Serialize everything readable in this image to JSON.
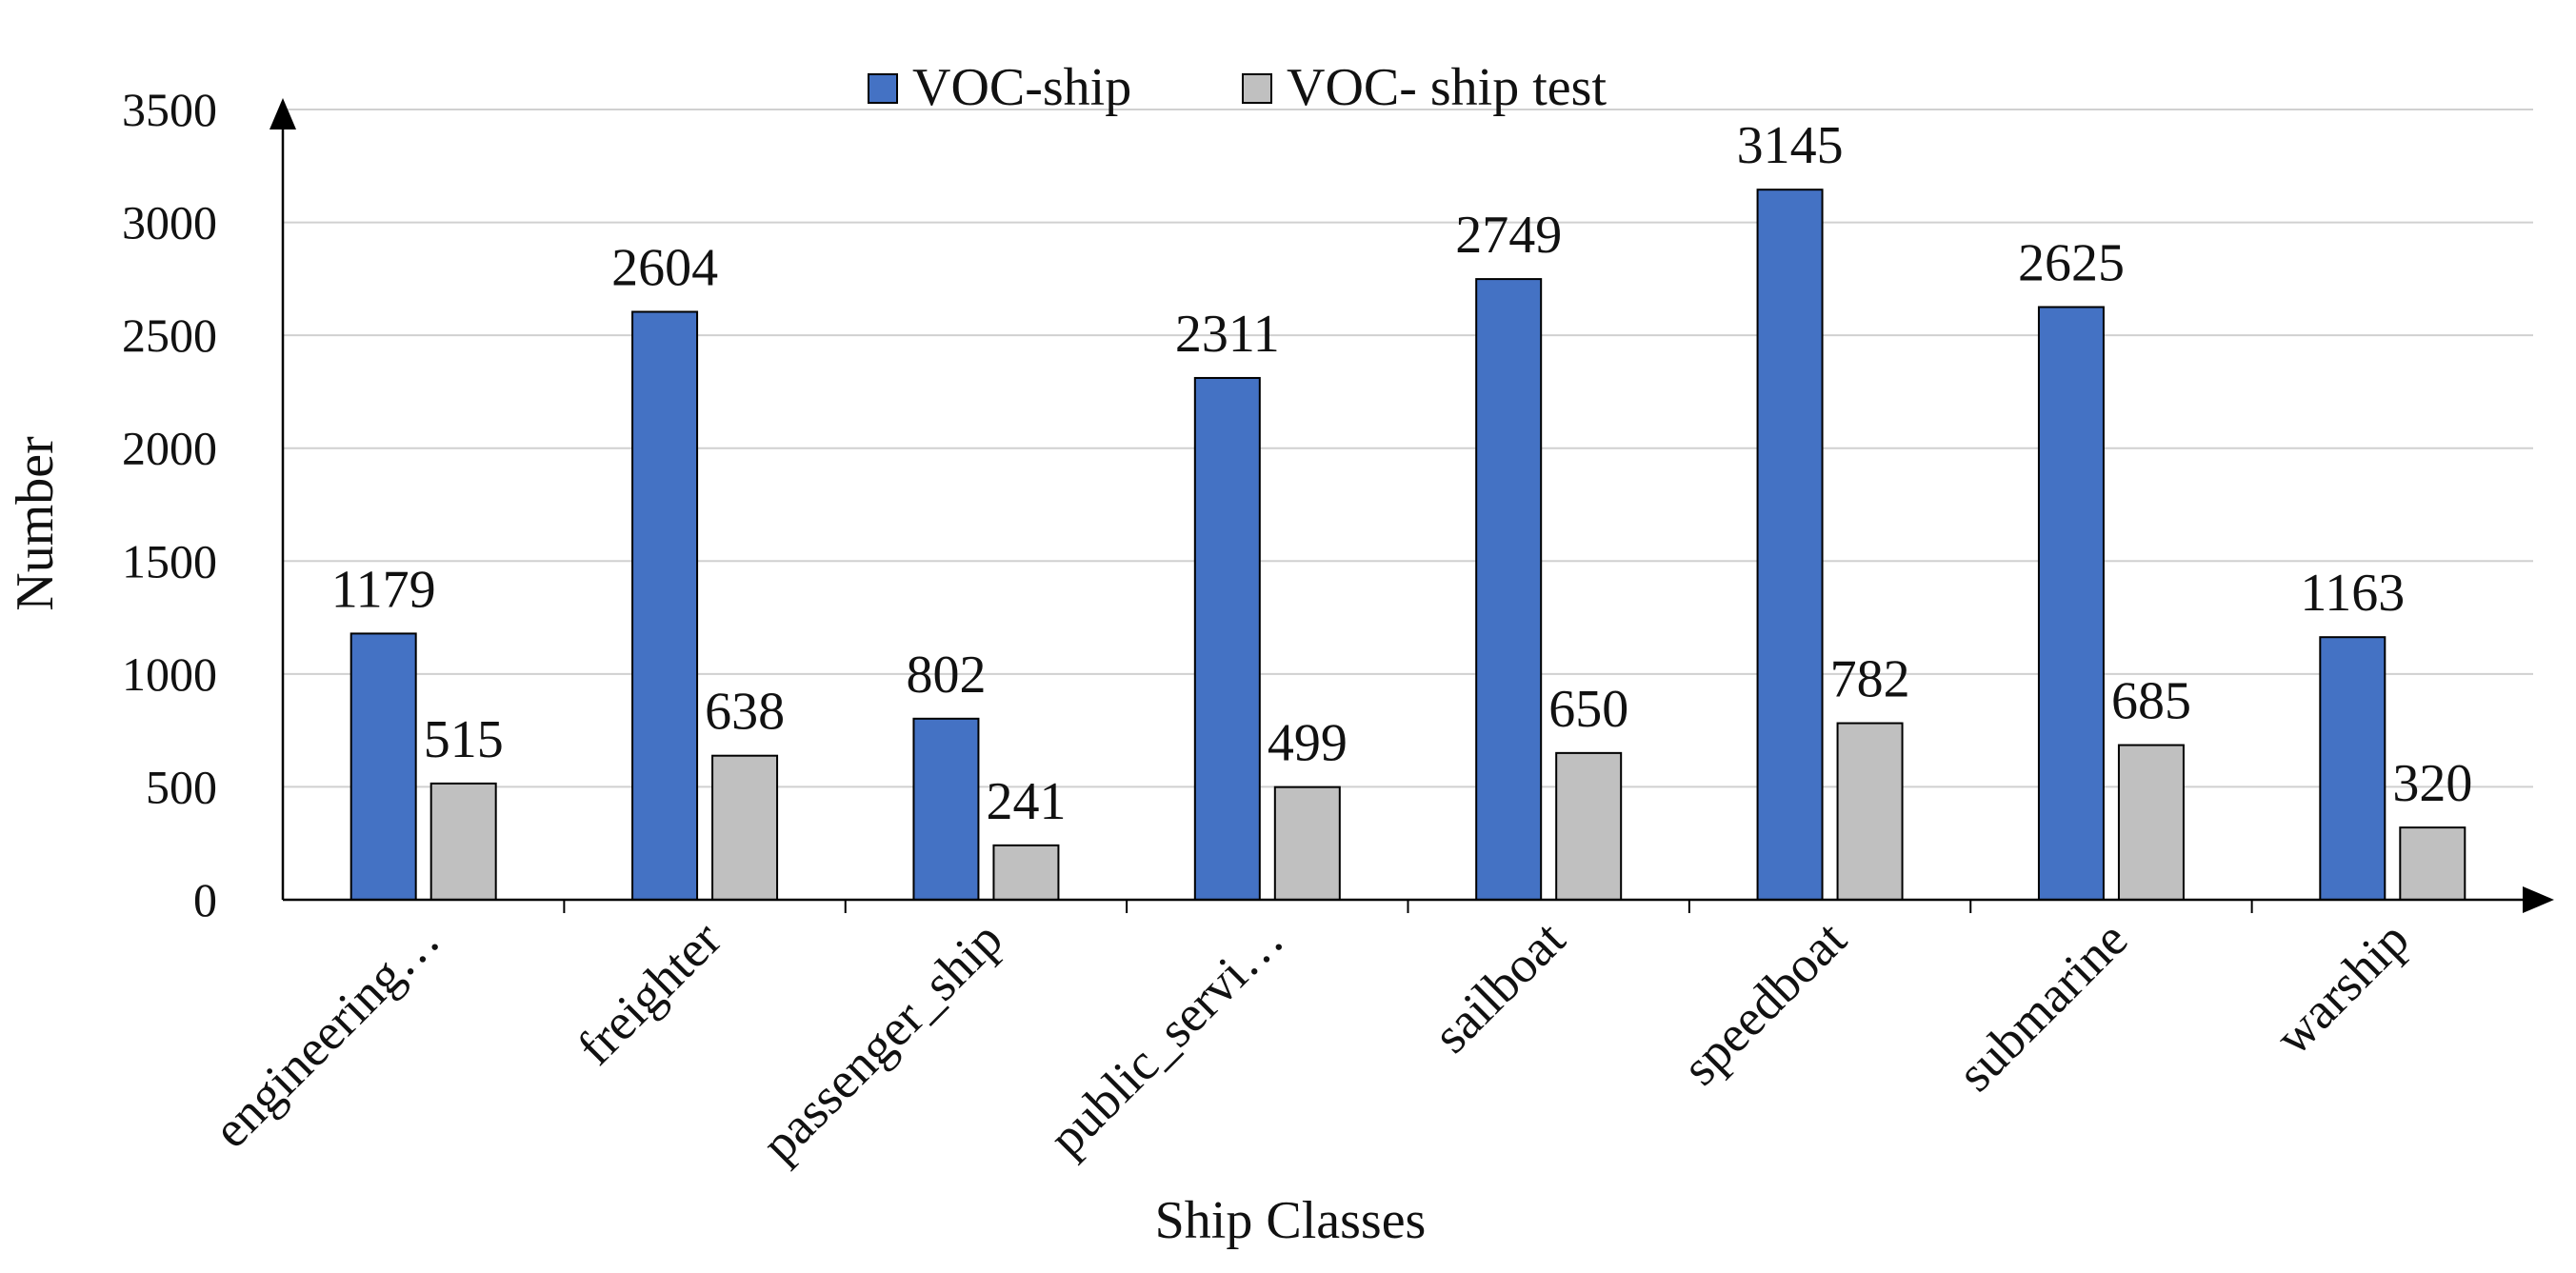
{
  "chart_data": {
    "type": "bar",
    "title": "",
    "xlabel": "Ship Classes",
    "ylabel": "Number",
    "ylim": [
      0,
      3500
    ],
    "yticks": [
      0,
      500,
      1000,
      1500,
      2000,
      2500,
      3000,
      3500
    ],
    "grid": true,
    "legend_position": "top-center",
    "categories": [
      "engineering…",
      "freighter",
      "passenger_ship",
      "public_servi…",
      "sailboat",
      "speedboat",
      "submarine",
      "warship"
    ],
    "series": [
      {
        "name": "VOC-ship",
        "color": "#4472C4",
        "values": [
          1179,
          2604,
          802,
          2311,
          2749,
          3145,
          2625,
          1163
        ]
      },
      {
        "name": "VOC- ship test",
        "color": "#C0C0C0",
        "values": [
          515,
          638,
          241,
          499,
          650,
          782,
          685,
          320
        ]
      }
    ]
  }
}
